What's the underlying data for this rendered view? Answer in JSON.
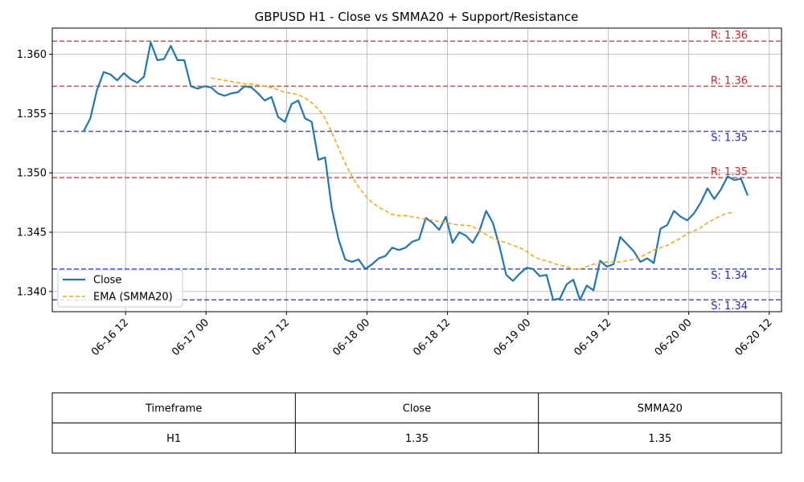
{
  "chart_data": {
    "type": "line",
    "title": "GBPUSD H1 - Close vs SMMA20 + Support/Resistance",
    "xlabel": "",
    "ylabel": "",
    "ylim": [
      1.3383,
      1.3622
    ],
    "y_ticks": [
      1.34,
      1.345,
      1.35,
      1.355,
      1.36
    ],
    "y_tick_labels": [
      "1.340",
      "1.345",
      "1.350",
      "1.355",
      "1.360"
    ],
    "x_ticks": [
      "06-16 12",
      "06-17 00",
      "06-17 12",
      "06-18 00",
      "06-18 12",
      "06-19 00",
      "06-19 12",
      "06-20 00",
      "06-20 12"
    ],
    "grid": true,
    "legend_placement": "lower-left",
    "series": [
      {
        "name": "Close",
        "color": "#1f77b4",
        "style": "solid",
        "start_index": 0,
        "values": [
          1.3535,
          1.3546,
          1.357,
          1.3585,
          1.3583,
          1.3578,
          1.3584,
          1.3579,
          1.3576,
          1.3581,
          1.361,
          1.3595,
          1.3596,
          1.3607,
          1.3595,
          1.3595,
          1.3573,
          1.3571,
          1.3573,
          1.3572,
          1.3567,
          1.3565,
          1.3567,
          1.3568,
          1.3573,
          1.3572,
          1.3567,
          1.3561,
          1.3564,
          1.3547,
          1.3543,
          1.3558,
          1.3561,
          1.3546,
          1.3543,
          1.3511,
          1.3513,
          1.347,
          1.3444,
          1.3427,
          1.3425,
          1.3427,
          1.3419,
          1.3423,
          1.3428,
          1.343,
          1.3437,
          1.3435,
          1.3437,
          1.3442,
          1.3444,
          1.3462,
          1.3458,
          1.3452,
          1.3463,
          1.3441,
          1.345,
          1.3447,
          1.3441,
          1.3451,
          1.3468,
          1.3458,
          1.3438,
          1.3414,
          1.3409,
          1.3415,
          1.342,
          1.3419,
          1.3413,
          1.3414,
          1.3393,
          1.3394,
          1.3406,
          1.341,
          1.3393,
          1.3405,
          1.3401,
          1.3426,
          1.3421,
          1.3423,
          1.3446,
          1.344,
          1.3434,
          1.3425,
          1.3428,
          1.3424,
          1.3453,
          1.3456,
          1.3468,
          1.3463,
          1.346,
          1.3466,
          1.3475,
          1.3487,
          1.3478,
          1.3486,
          1.3497,
          1.3494,
          1.3495,
          1.3481
        ]
      },
      {
        "name": "EMA (SMMA20)",
        "color": "#ffa500",
        "style": "dashed",
        "start_index": 19,
        "values": [
          1.358,
          1.3579,
          1.3578,
          1.3577,
          1.3576,
          1.3575,
          1.3575,
          1.3574,
          1.3573,
          1.3572,
          1.357,
          1.3568,
          1.3567,
          1.3566,
          1.3563,
          1.3559,
          1.3554,
          1.3546,
          1.3534,
          1.3521,
          1.3508,
          1.3497,
          1.3488,
          1.3481,
          1.3475,
          1.3471,
          1.3468,
          1.3465,
          1.3464,
          1.3464,
          1.3463,
          1.3462,
          1.3461,
          1.346,
          1.3459,
          1.3458,
          1.3457,
          1.3456,
          1.3456,
          1.3455,
          1.3451,
          1.3448,
          1.3445,
          1.3443,
          1.3441,
          1.3439,
          1.3437,
          1.3434,
          1.343,
          1.3427,
          1.3426,
          1.3424,
          1.3422,
          1.3421,
          1.3419,
          1.3419,
          1.3421,
          1.3423,
          1.3424,
          1.3425,
          1.3425,
          1.3425,
          1.3426,
          1.3427,
          1.3429,
          1.3432,
          1.3435,
          1.3437,
          1.3439,
          1.3442,
          1.3445,
          1.3449,
          1.3451,
          1.3454,
          1.3458,
          1.3461,
          1.3464,
          1.3466,
          1.3467
        ]
      }
    ],
    "levels": [
      {
        "kind": "resistance",
        "value": 1.3611,
        "label": "R: 1.36",
        "color": "#e41a1c"
      },
      {
        "kind": "resistance",
        "value": 1.3573,
        "label": "R: 1.36",
        "color": "#e41a1c"
      },
      {
        "kind": "support",
        "value": 1.3535,
        "label": "S: 1.35",
        "color": "#1f1fe6"
      },
      {
        "kind": "resistance",
        "value": 1.3496,
        "label": "R: 1.35",
        "color": "#e41a1c"
      },
      {
        "kind": "support",
        "value": 1.3419,
        "label": "S: 1.34",
        "color": "#1f1fe6"
      },
      {
        "kind": "support",
        "value": 1.3393,
        "label": "S: 1.34",
        "color": "#1f1fe6"
      }
    ],
    "table": {
      "headers": [
        "Timeframe",
        "Close",
        "SMMA20"
      ],
      "rows": [
        [
          "H1",
          "1.35",
          "1.35"
        ]
      ]
    }
  }
}
